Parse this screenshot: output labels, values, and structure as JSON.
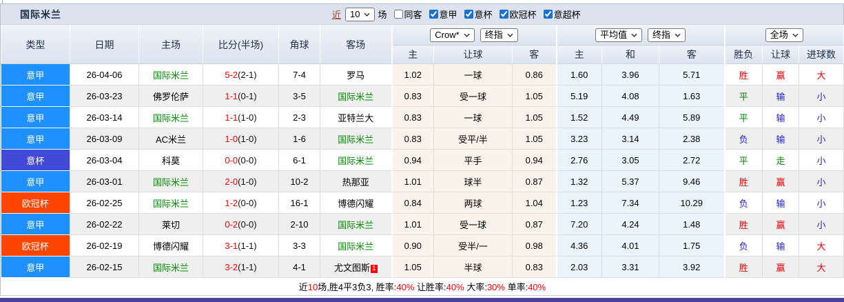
{
  "title": "国际米兰",
  "controls": {
    "recent_link": "近",
    "recent_count": "10",
    "unit_label": "场",
    "same_away": {
      "label": "同客",
      "checked": false
    },
    "filters": [
      {
        "label": "意甲",
        "checked": true
      },
      {
        "label": "意杯",
        "checked": true
      },
      {
        "label": "欧冠杯",
        "checked": true
      },
      {
        "label": "意超杯",
        "checked": true
      }
    ]
  },
  "header": {
    "col_type": "类型",
    "col_date": "日期",
    "col_home": "主场",
    "col_score": "比分(半场)",
    "col_corner": "角球",
    "col_away": "客场",
    "handicap": {
      "source_select": "Crow*",
      "time_select": "终指",
      "sub": [
        "主",
        "让球",
        "客"
      ]
    },
    "euro": {
      "source_select": "平均值",
      "time_select": "终指",
      "sub": [
        "主",
        "和",
        "客"
      ]
    },
    "result": {
      "scope_select": "全场",
      "sub": [
        "胜负",
        "让球",
        "进球数"
      ]
    }
  },
  "rows": [
    {
      "league": "意甲",
      "league_color": "serie_a",
      "date": "26-04-06",
      "home": "国际米兰",
      "home_target": true,
      "score": "5-2",
      "half": "(2-1)",
      "corners": "7-4",
      "away": "罗马",
      "away_target": false,
      "away_badge": "",
      "handicap": [
        "1.02",
        "一球",
        "0.86"
      ],
      "euro": [
        "1.60",
        "3.96",
        "5.71"
      ],
      "results": [
        {
          "text": "胜",
          "color": "red"
        },
        {
          "text": "赢",
          "color": "red"
        },
        {
          "text": "大",
          "color": "red"
        }
      ]
    },
    {
      "league": "意甲",
      "league_color": "serie_a",
      "date": "26-03-23",
      "home": "佛罗伦萨",
      "home_target": false,
      "score": "1-1",
      "half": "(0-1)",
      "corners": "3-5",
      "away": "国际米兰",
      "away_target": true,
      "away_badge": "",
      "handicap": [
        "0.83",
        "受一球",
        "1.05"
      ],
      "euro": [
        "5.19",
        "4.08",
        "1.63"
      ],
      "results": [
        {
          "text": "平",
          "color": "green"
        },
        {
          "text": "输",
          "color": "blue"
        },
        {
          "text": "小",
          "color": "blue"
        }
      ]
    },
    {
      "league": "意甲",
      "league_color": "serie_a",
      "date": "26-03-14",
      "home": "国际米兰",
      "home_target": true,
      "score": "1-1",
      "half": "(1-0)",
      "corners": "2-3",
      "away": "亚特兰大",
      "away_target": false,
      "away_badge": "",
      "handicap": [
        "0.83",
        "一球",
        "1.05"
      ],
      "euro": [
        "1.52",
        "4.49",
        "5.89"
      ],
      "results": [
        {
          "text": "平",
          "color": "green"
        },
        {
          "text": "输",
          "color": "blue"
        },
        {
          "text": "小",
          "color": "blue"
        }
      ]
    },
    {
      "league": "意甲",
      "league_color": "serie_a",
      "date": "26-03-09",
      "home": "AC米兰",
      "home_target": false,
      "score": "1-0",
      "half": "(1-0)",
      "corners": "1-6",
      "away": "国际米兰",
      "away_target": true,
      "away_badge": "",
      "handicap": [
        "0.83",
        "受平/半",
        "1.05"
      ],
      "euro": [
        "3.23",
        "3.14",
        "2.38"
      ],
      "results": [
        {
          "text": "负",
          "color": "blue"
        },
        {
          "text": "输",
          "color": "blue"
        },
        {
          "text": "小",
          "color": "blue"
        }
      ]
    },
    {
      "league": "意杯",
      "league_color": "coppa_italia",
      "date": "26-03-04",
      "home": "科莫",
      "home_target": false,
      "score": "0-0",
      "half": "(0-0)",
      "corners": "6-1",
      "away": "国际米兰",
      "away_target": true,
      "away_badge": "",
      "handicap": [
        "0.94",
        "平手",
        "0.94"
      ],
      "euro": [
        "2.76",
        "3.05",
        "2.72"
      ],
      "results": [
        {
          "text": "平",
          "color": "green"
        },
        {
          "text": "走",
          "color": "green"
        },
        {
          "text": "小",
          "color": "blue"
        }
      ]
    },
    {
      "league": "意甲",
      "league_color": "serie_a",
      "date": "26-03-01",
      "home": "国际米兰",
      "home_target": true,
      "score": "2-0",
      "half": "(1-0)",
      "corners": "10-2",
      "away": "热那亚",
      "away_target": false,
      "away_badge": "",
      "handicap": [
        "1.01",
        "球半",
        "0.87"
      ],
      "euro": [
        "1.32",
        "5.37",
        "9.46"
      ],
      "results": [
        {
          "text": "胜",
          "color": "red"
        },
        {
          "text": "赢",
          "color": "red"
        },
        {
          "text": "小",
          "color": "blue"
        }
      ]
    },
    {
      "league": "欧冠杯",
      "league_color": "champions_league",
      "date": "26-02-25",
      "home": "国际米兰",
      "home_target": true,
      "score": "1-2",
      "half": "(0-0)",
      "corners": "16-1",
      "away": "博德闪耀",
      "away_target": false,
      "away_badge": "",
      "handicap": [
        "0.84",
        "两球",
        "1.04"
      ],
      "euro": [
        "1.23",
        "7.34",
        "10.29"
      ],
      "results": [
        {
          "text": "负",
          "color": "blue"
        },
        {
          "text": "输",
          "color": "blue"
        },
        {
          "text": "小",
          "color": "blue"
        }
      ]
    },
    {
      "league": "意甲",
      "league_color": "serie_a",
      "date": "26-02-22",
      "home": "莱切",
      "home_target": false,
      "score": "0-2",
      "half": "(0-0)",
      "corners": "2-10",
      "away": "国际米兰",
      "away_target": true,
      "away_badge": "",
      "handicap": [
        "1.01",
        "受一球",
        "0.87"
      ],
      "euro": [
        "7.20",
        "4.24",
        "1.48"
      ],
      "results": [
        {
          "text": "胜",
          "color": "red"
        },
        {
          "text": "赢",
          "color": "red"
        },
        {
          "text": "小",
          "color": "blue"
        }
      ]
    },
    {
      "league": "欧冠杯",
      "league_color": "champions_league",
      "date": "26-02-19",
      "home": "博德闪耀",
      "home_target": false,
      "score": "3-1",
      "half": "(1-1)",
      "corners": "3-3",
      "away": "国际米兰",
      "away_target": true,
      "away_badge": "",
      "handicap": [
        "0.90",
        "受半/一",
        "0.98"
      ],
      "euro": [
        "4.36",
        "4.01",
        "1.75"
      ],
      "results": [
        {
          "text": "负",
          "color": "blue"
        },
        {
          "text": "输",
          "color": "blue"
        },
        {
          "text": "大",
          "color": "red"
        }
      ]
    },
    {
      "league": "意甲",
      "league_color": "serie_a",
      "date": "26-02-15",
      "home": "国际米兰",
      "home_target": true,
      "score": "3-2",
      "half": "(1-1)",
      "corners": "4-1",
      "away": "尤文图斯",
      "away_target": false,
      "away_badge": "1",
      "handicap": [
        "1.05",
        "半球",
        "0.83"
      ],
      "euro": [
        "2.03",
        "3.31",
        "3.92"
      ],
      "results": [
        {
          "text": "胜",
          "color": "red"
        },
        {
          "text": "赢",
          "color": "red"
        },
        {
          "text": "大",
          "color": "red"
        }
      ]
    }
  ],
  "footer": {
    "segments": [
      {
        "text": "近",
        "red": false
      },
      {
        "text": "10",
        "red": true
      },
      {
        "text": "场,胜4平3负3, 胜率:",
        "red": false
      },
      {
        "text": "40%",
        "red": true
      },
      {
        "text": " 让胜率:",
        "red": false
      },
      {
        "text": "40%",
        "red": true
      },
      {
        "text": " 大率:",
        "red": false
      },
      {
        "text": "30%",
        "red": true
      },
      {
        "text": " 单率:",
        "red": false
      },
      {
        "text": "40%",
        "red": true
      }
    ]
  },
  "colors": {
    "red": "#e60000",
    "green": "#008000",
    "blue": "#2222cc",
    "team_green": "#008800",
    "score_red": "#ff0000",
    "serie_a": "#1e90ff",
    "coppa_italia": "#4149d6",
    "champions_league": "#ff4500",
    "recent_link": "#a0432a",
    "checkbox_blue": "#1973ce",
    "accent_bar": "#4c3f97"
  }
}
